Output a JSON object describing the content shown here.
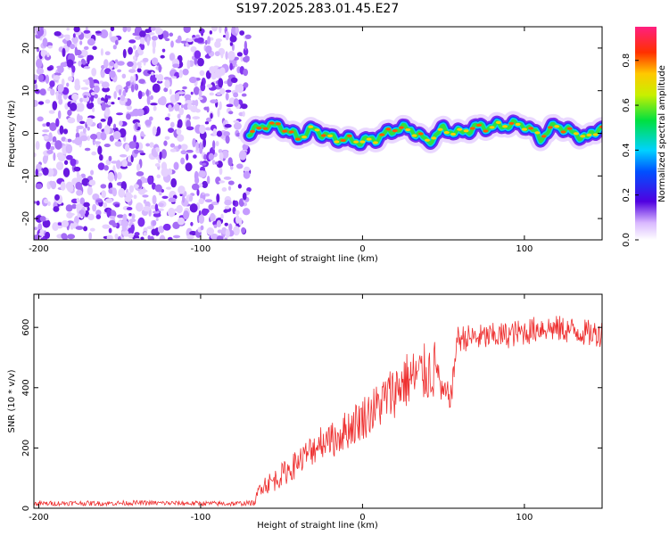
{
  "title": "S197.2025.283.01.45.E27",
  "chart_data": [
    {
      "type": "heatmap",
      "name": "spectrogram",
      "xlabel": "Height of straight line (km)",
      "ylabel": "Frequency (Hz)",
      "xlim": [
        -203,
        148
      ],
      "ylim": [
        -25,
        25
      ],
      "xticks": [
        -200,
        -100,
        0,
        100
      ],
      "xtick_labels": [
        "-200",
        "-100",
        "0",
        "100"
      ],
      "yticks": [
        -20,
        -10,
        0,
        10,
        20
      ],
      "ytick_labels": [
        "-20",
        "-10",
        "0",
        "10",
        "20"
      ],
      "noise_region_km": [
        -203,
        -70
      ],
      "signal_start_km": -70,
      "signal_track": {
        "x": [
          -70,
          -60,
          -50,
          -40,
          -30,
          -20,
          -10,
          0,
          10,
          20,
          30,
          40,
          50,
          60,
          70,
          80,
          90,
          100,
          110,
          120,
          130,
          140,
          148
        ],
        "y": [
          0,
          2,
          1.5,
          -1,
          1,
          -1,
          -1.5,
          -2,
          -1,
          1,
          1,
          -2,
          1,
          0,
          1.5,
          1.5,
          2,
          2,
          -1,
          2,
          0,
          -1,
          2
        ]
      },
      "colorbar": {
        "label": "Normalized spectral amplitude",
        "range": [
          0,
          0.95
        ],
        "ticks": [
          0.0,
          0.2,
          0.4,
          0.6,
          0.8
        ],
        "tick_labels": [
          "0.0",
          "0.2",
          "0.4",
          "0.6",
          "0.8"
        ]
      }
    },
    {
      "type": "line",
      "name": "snr",
      "xlabel": "Height of straight line (km)",
      "ylabel": "SNR (10 * v/v)",
      "xlim": [
        -203,
        148
      ],
      "ylim": [
        0,
        710
      ],
      "xticks": [
        -200,
        -100,
        0,
        100
      ],
      "xtick_labels": [
        "-200",
        "-100",
        "0",
        "100"
      ],
      "yticks": [
        0,
        200,
        400,
        600
      ],
      "ytick_labels": [
        "0",
        "200",
        "400",
        "600"
      ],
      "color": "#ee3030",
      "series": [
        {
          "name": "SNR",
          "x": [
            -203,
            -180,
            -160,
            -140,
            -120,
            -100,
            -80,
            -66,
            -63,
            -60,
            -55,
            -50,
            -40,
            -30,
            -25,
            -20,
            -15,
            -10,
            -5,
            0,
            5,
            10,
            15,
            20,
            25,
            30,
            35,
            40,
            45,
            47,
            48,
            55,
            57,
            58,
            62,
            70,
            80,
            90,
            100,
            105,
            110,
            120,
            130,
            140,
            148
          ],
          "y": [
            15,
            17,
            16,
            18,
            17,
            16,
            15,
            18,
            80,
            80,
            90,
            110,
            150,
            200,
            230,
            220,
            240,
            260,
            280,
            300,
            320,
            340,
            370,
            390,
            420,
            430,
            440,
            450,
            460,
            465,
            380,
            375,
            480,
            560,
            565,
            565,
            570,
            575,
            585,
            590,
            600,
            595,
            590,
            580,
            580
          ]
        }
      ]
    }
  ]
}
